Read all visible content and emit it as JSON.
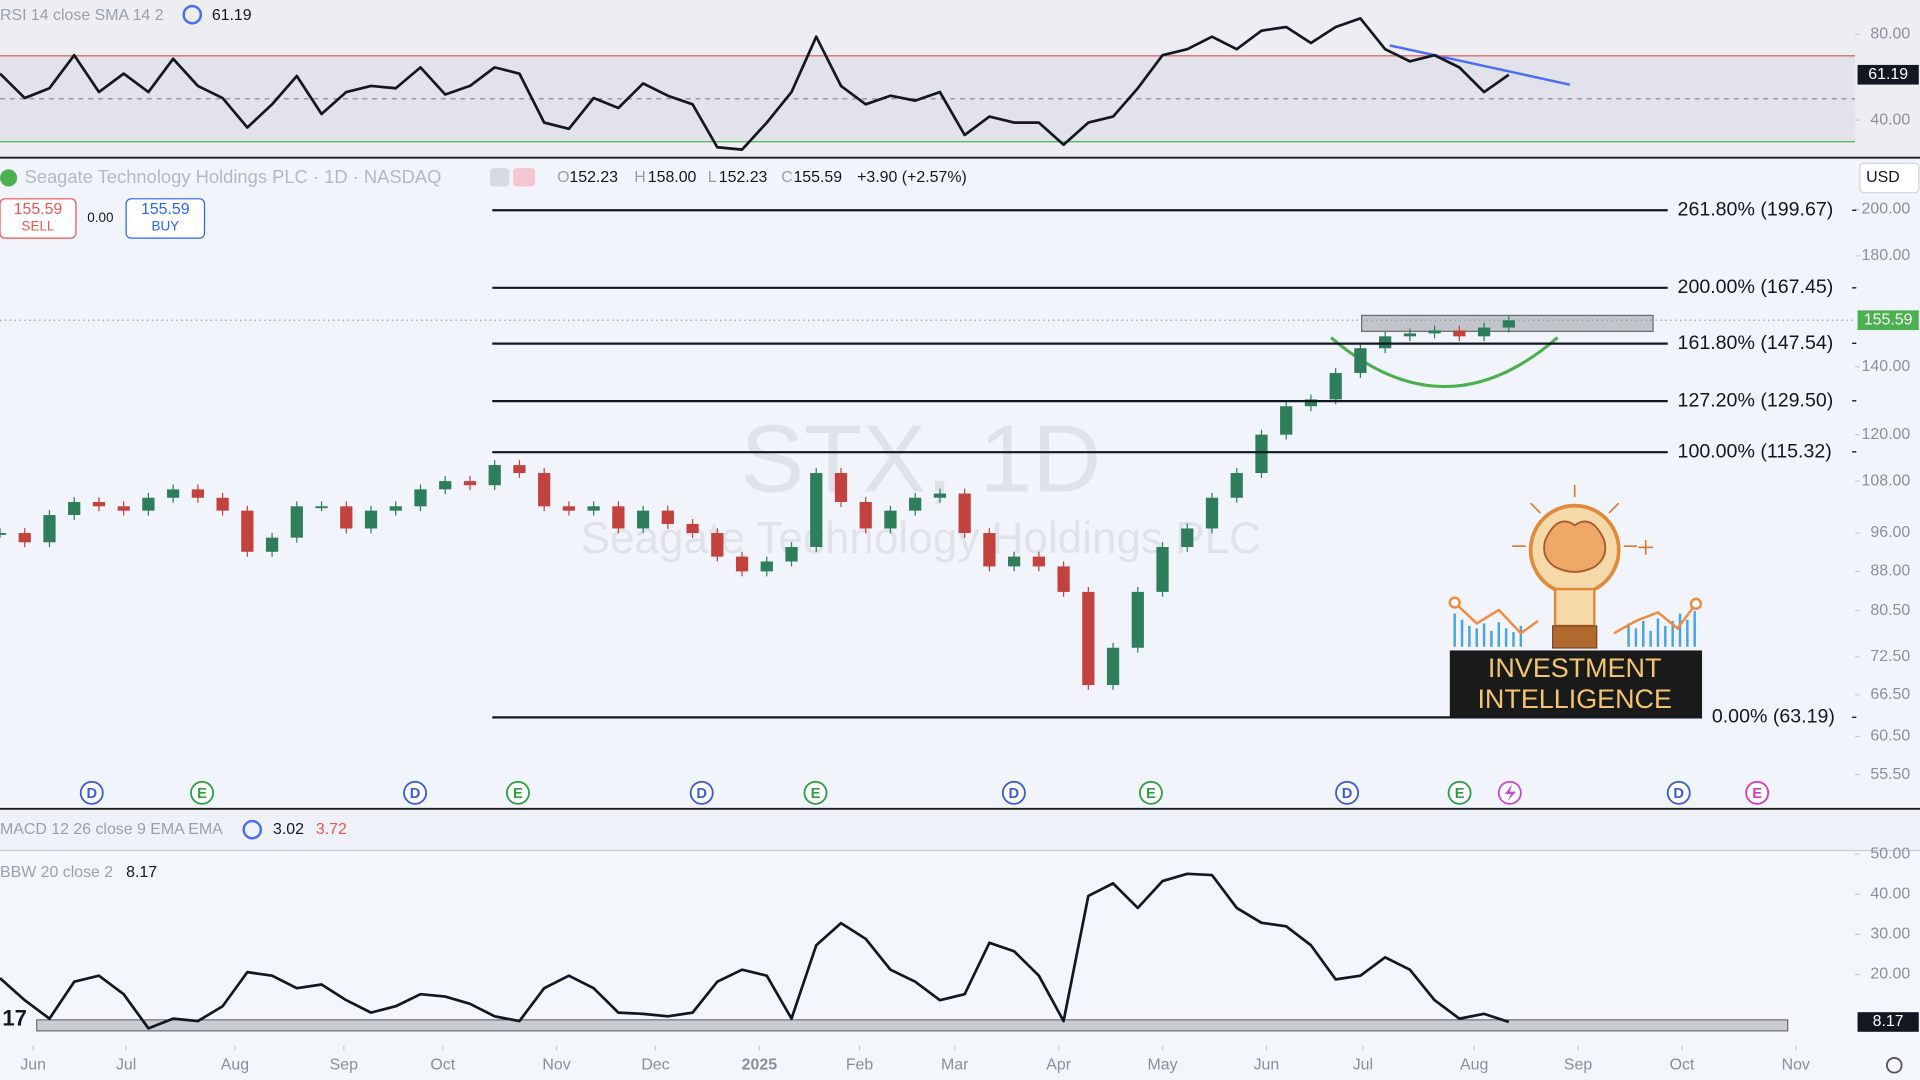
{
  "toolbar": {
    "symbol": "Seagate Technology Holdings PLC · 1D · NASDAQ",
    "o_label": "O",
    "open": "152.23",
    "h_label": "H",
    "high": "158.00",
    "l_label": "L",
    "low": "152.23",
    "c_label": "C",
    "close": "155.59",
    "change": "+3.90 (+2.57%)",
    "sell_price": "155.59",
    "sell": "SELL",
    "spread": "0.00",
    "buy_price": "155.59",
    "buy": "BUY",
    "currency": "USD"
  },
  "watermark": {
    "symbol": "STX, 1D",
    "name": "Seagate Technology Holdings PLC"
  },
  "logo": {
    "line1": "INVESTMENT",
    "line2": "INTELLIGENCE"
  },
  "macd": {
    "title": "MACD 12 26 close 9 EMA EMA",
    "macd": "3.02",
    "signal": "3.72"
  },
  "chart_data": [
    {
      "type": "line",
      "title": "RSI 14 close SMA 14 2",
      "color": "#131722",
      "x": [
        0,
        1,
        2,
        3,
        4,
        5,
        6,
        7,
        8,
        9,
        10,
        11,
        12,
        13,
        14,
        15,
        16,
        17,
        18,
        19,
        20,
        21,
        22,
        23,
        24,
        25,
        26,
        27,
        28,
        29,
        30,
        31,
        32,
        33,
        34,
        35,
        36,
        37,
        38,
        39,
        40,
        41,
        42,
        43,
        44,
        45,
        46,
        47,
        48,
        49,
        50,
        51,
        52,
        53,
        54,
        55,
        56,
        57,
        58,
        59,
        60,
        61
      ],
      "values": [
        61.7,
        50.3,
        54.9,
        70.3,
        53.1,
        61.7,
        53.1,
        68.6,
        56,
        50.3,
        36.6,
        47.4,
        60.6,
        42.9,
        53.1,
        56,
        54.9,
        64.6,
        52,
        56,
        64.6,
        61.7,
        38.9,
        36,
        50.3,
        45.7,
        57.1,
        51.4,
        47.4,
        27.4,
        26.3,
        38.9,
        53.1,
        78.9,
        56,
        47.4,
        51.4,
        49.1,
        53.1,
        33.1,
        41.7,
        38.9,
        38.9,
        28.6,
        38.9,
        41.7,
        54.9,
        70.3,
        73.1,
        78.9,
        73.1,
        81.7,
        83.4,
        76,
        83.4,
        87.4,
        73.1,
        67.4,
        70.3,
        64.6,
        53.1,
        61.19
      ],
      "xlim": [
        0,
        75
      ],
      "ylim": [
        23.4,
        96
      ],
      "yticks": [
        {
          "value": 80,
          "label": "80.00"
        },
        {
          "value": 40,
          "label": "40.00"
        }
      ],
      "upper_band": 70,
      "middle_band": 50,
      "lower_band": 30,
      "upper_color": "#e06b6b",
      "lower_color": "#5cb85c"
    },
    {
      "type": "candlestick",
      "up_color": "#2e7d5b",
      "down_color": "#c2433d",
      "last_color": "#4caf50",
      "x": [
        0,
        1,
        2,
        3,
        4,
        5,
        6,
        7,
        8,
        9,
        10,
        11,
        12,
        13,
        14,
        15,
        16,
        17,
        18,
        19,
        20,
        21,
        22,
        23,
        24,
        25,
        26,
        27,
        28,
        29,
        30,
        31,
        32,
        33,
        34,
        35,
        36,
        37,
        38,
        39,
        40,
        41,
        42,
        43,
        44,
        45,
        46,
        47,
        48,
        49,
        50,
        51,
        52,
        53,
        54,
        55,
        56,
        57,
        58,
        59,
        60,
        61
      ],
      "values": [
        96,
        94,
        100,
        103,
        102,
        101,
        104,
        106,
        104,
        101,
        92,
        95,
        102,
        102,
        97,
        101,
        102,
        106,
        108,
        107,
        112,
        110,
        102,
        101,
        102,
        97,
        101,
        98,
        96,
        91,
        88,
        90,
        93,
        110,
        103,
        97,
        101,
        104,
        105,
        96,
        89,
        91,
        89,
        84,
        68,
        74,
        84,
        93,
        97,
        104,
        110,
        120,
        128,
        130,
        138,
        146,
        150,
        151,
        152,
        150,
        153,
        155.59
      ],
      "xlim": [
        0,
        75
      ],
      "ylim": [
        51.5,
        224
      ],
      "log_scale": true,
      "yticks": [
        {
          "value": 200,
          "label": "200.00"
        },
        {
          "value": 180,
          "label": "180.00"
        },
        {
          "value": 140,
          "label": "140.00"
        },
        {
          "value": 120,
          "label": "120.00"
        },
        {
          "value": 108,
          "label": "108.00"
        },
        {
          "value": 96,
          "label": "96.00"
        },
        {
          "value": 88,
          "label": "88.00"
        },
        {
          "value": 80.5,
          "label": "80.50"
        },
        {
          "value": 72.5,
          "label": "72.50"
        },
        {
          "value": 66.5,
          "label": "66.50"
        },
        {
          "value": 60.5,
          "label": "60.50"
        },
        {
          "value": 55.5,
          "label": "55.50"
        }
      ],
      "fibonacci": [
        {
          "value": 199.67,
          "label": "261.80% (199.67)"
        },
        {
          "value": 167.45,
          "label": "200.00% (167.45)"
        },
        {
          "value": 147.54,
          "label": "161.80% (147.54)"
        },
        {
          "value": 129.5,
          "label": "127.20% (129.50)"
        },
        {
          "value": 115.32,
          "label": "100.00% (115.32)"
        },
        {
          "value": 63.19,
          "label": "0.00% (63.19)"
        }
      ],
      "events": [
        {
          "label": "D",
          "x": 3.71,
          "color": "#3b5bdb"
        },
        {
          "label": "E",
          "x": 8.17,
          "color": "#2f9e44"
        },
        {
          "label": "D",
          "x": 16.78,
          "color": "#3b5bdb"
        },
        {
          "label": "E",
          "x": 20.94,
          "color": "#2f9e44"
        },
        {
          "label": "D",
          "x": 28.37,
          "color": "#3b5bdb"
        },
        {
          "label": "E",
          "x": 32.97,
          "color": "#2f9e44"
        },
        {
          "label": "D",
          "x": 40.99,
          "color": "#3b5bdb"
        },
        {
          "label": "E",
          "x": 46.53,
          "color": "#2f9e44"
        },
        {
          "label": "D",
          "x": 54.46,
          "color": "#3b5bdb"
        },
        {
          "label": "E",
          "x": 59.01,
          "color": "#2f9e44"
        },
        {
          "label": "D",
          "x": 67.87,
          "color": "#3b5bdb"
        },
        {
          "label": "E",
          "x": 71.04,
          "color": "#d63ab8"
        }
      ]
    },
    {
      "type": "line",
      "title": "BBW 20 close 2",
      "color": "#131722",
      "x": [
        0,
        1,
        2,
        3,
        4,
        5,
        6,
        7,
        8,
        9,
        10,
        11,
        12,
        13,
        14,
        15,
        16,
        17,
        18,
        19,
        20,
        21,
        22,
        23,
        24,
        25,
        26,
        27,
        28,
        29,
        30,
        31,
        32,
        33,
        34,
        35,
        36,
        37,
        38,
        39,
        40,
        41,
        42,
        43,
        44,
        45,
        46,
        47,
        48,
        49,
        50,
        51,
        52,
        53,
        54,
        55,
        56,
        57,
        58,
        59,
        60,
        61
      ],
      "values": [
        19.1,
        13.6,
        9,
        18.2,
        19.7,
        15.1,
        6.6,
        9,
        8.4,
        12.1,
        20.6,
        19.7,
        16.6,
        17.5,
        13.6,
        10.5,
        12.1,
        15.1,
        14.5,
        12.7,
        9.6,
        8.4,
        16.6,
        19.7,
        16.6,
        10.5,
        10.2,
        9.6,
        10.5,
        18.2,
        21.2,
        19.7,
        9,
        27.3,
        32.8,
        28.9,
        21.2,
        18.2,
        13.6,
        15.1,
        27.9,
        25.8,
        19.7,
        8.4,
        39.6,
        42.7,
        36.6,
        43.3,
        45.1,
        44.8,
        36.6,
        32.9,
        32,
        27.3,
        18.8,
        19.7,
        24.3,
        21.2,
        13.6,
        9,
        10.2,
        8.17
      ],
      "xlim": [
        0,
        75
      ],
      "ylim": [
        3.5,
        50.3
      ],
      "yticks": [
        {
          "value": 50,
          "label": "50.00"
        },
        {
          "value": 40,
          "label": "40.00"
        },
        {
          "value": 30,
          "label": "30.00"
        },
        {
          "value": 20,
          "label": "20.00"
        }
      ],
      "xticks": [
        {
          "value": 1.34,
          "label": "Jun"
        },
        {
          "value": 5.1,
          "label": "Jul"
        },
        {
          "value": 9.5,
          "label": "Aug"
        },
        {
          "value": 13.9,
          "label": "Sep"
        },
        {
          "value": 17.9,
          "label": "Oct"
        },
        {
          "value": 22.5,
          "label": "Nov"
        },
        {
          "value": 26.5,
          "label": "Dec"
        },
        {
          "value": 30.7,
          "label": "2025"
        },
        {
          "value": 34.75,
          "label": "Feb"
        },
        {
          "value": 38.6,
          "label": "Mar"
        },
        {
          "value": 42.8,
          "label": "Apr"
        },
        {
          "value": 47,
          "label": "May"
        },
        {
          "value": 51.2,
          "label": "Jun"
        },
        {
          "value": 55.1,
          "label": "Jul"
        },
        {
          "value": 59.6,
          "label": "Aug"
        },
        {
          "value": 63.8,
          "label": "Sep"
        },
        {
          "value": 68,
          "label": "Oct"
        },
        {
          "value": 72.6,
          "label": "Nov"
        }
      ]
    }
  ]
}
